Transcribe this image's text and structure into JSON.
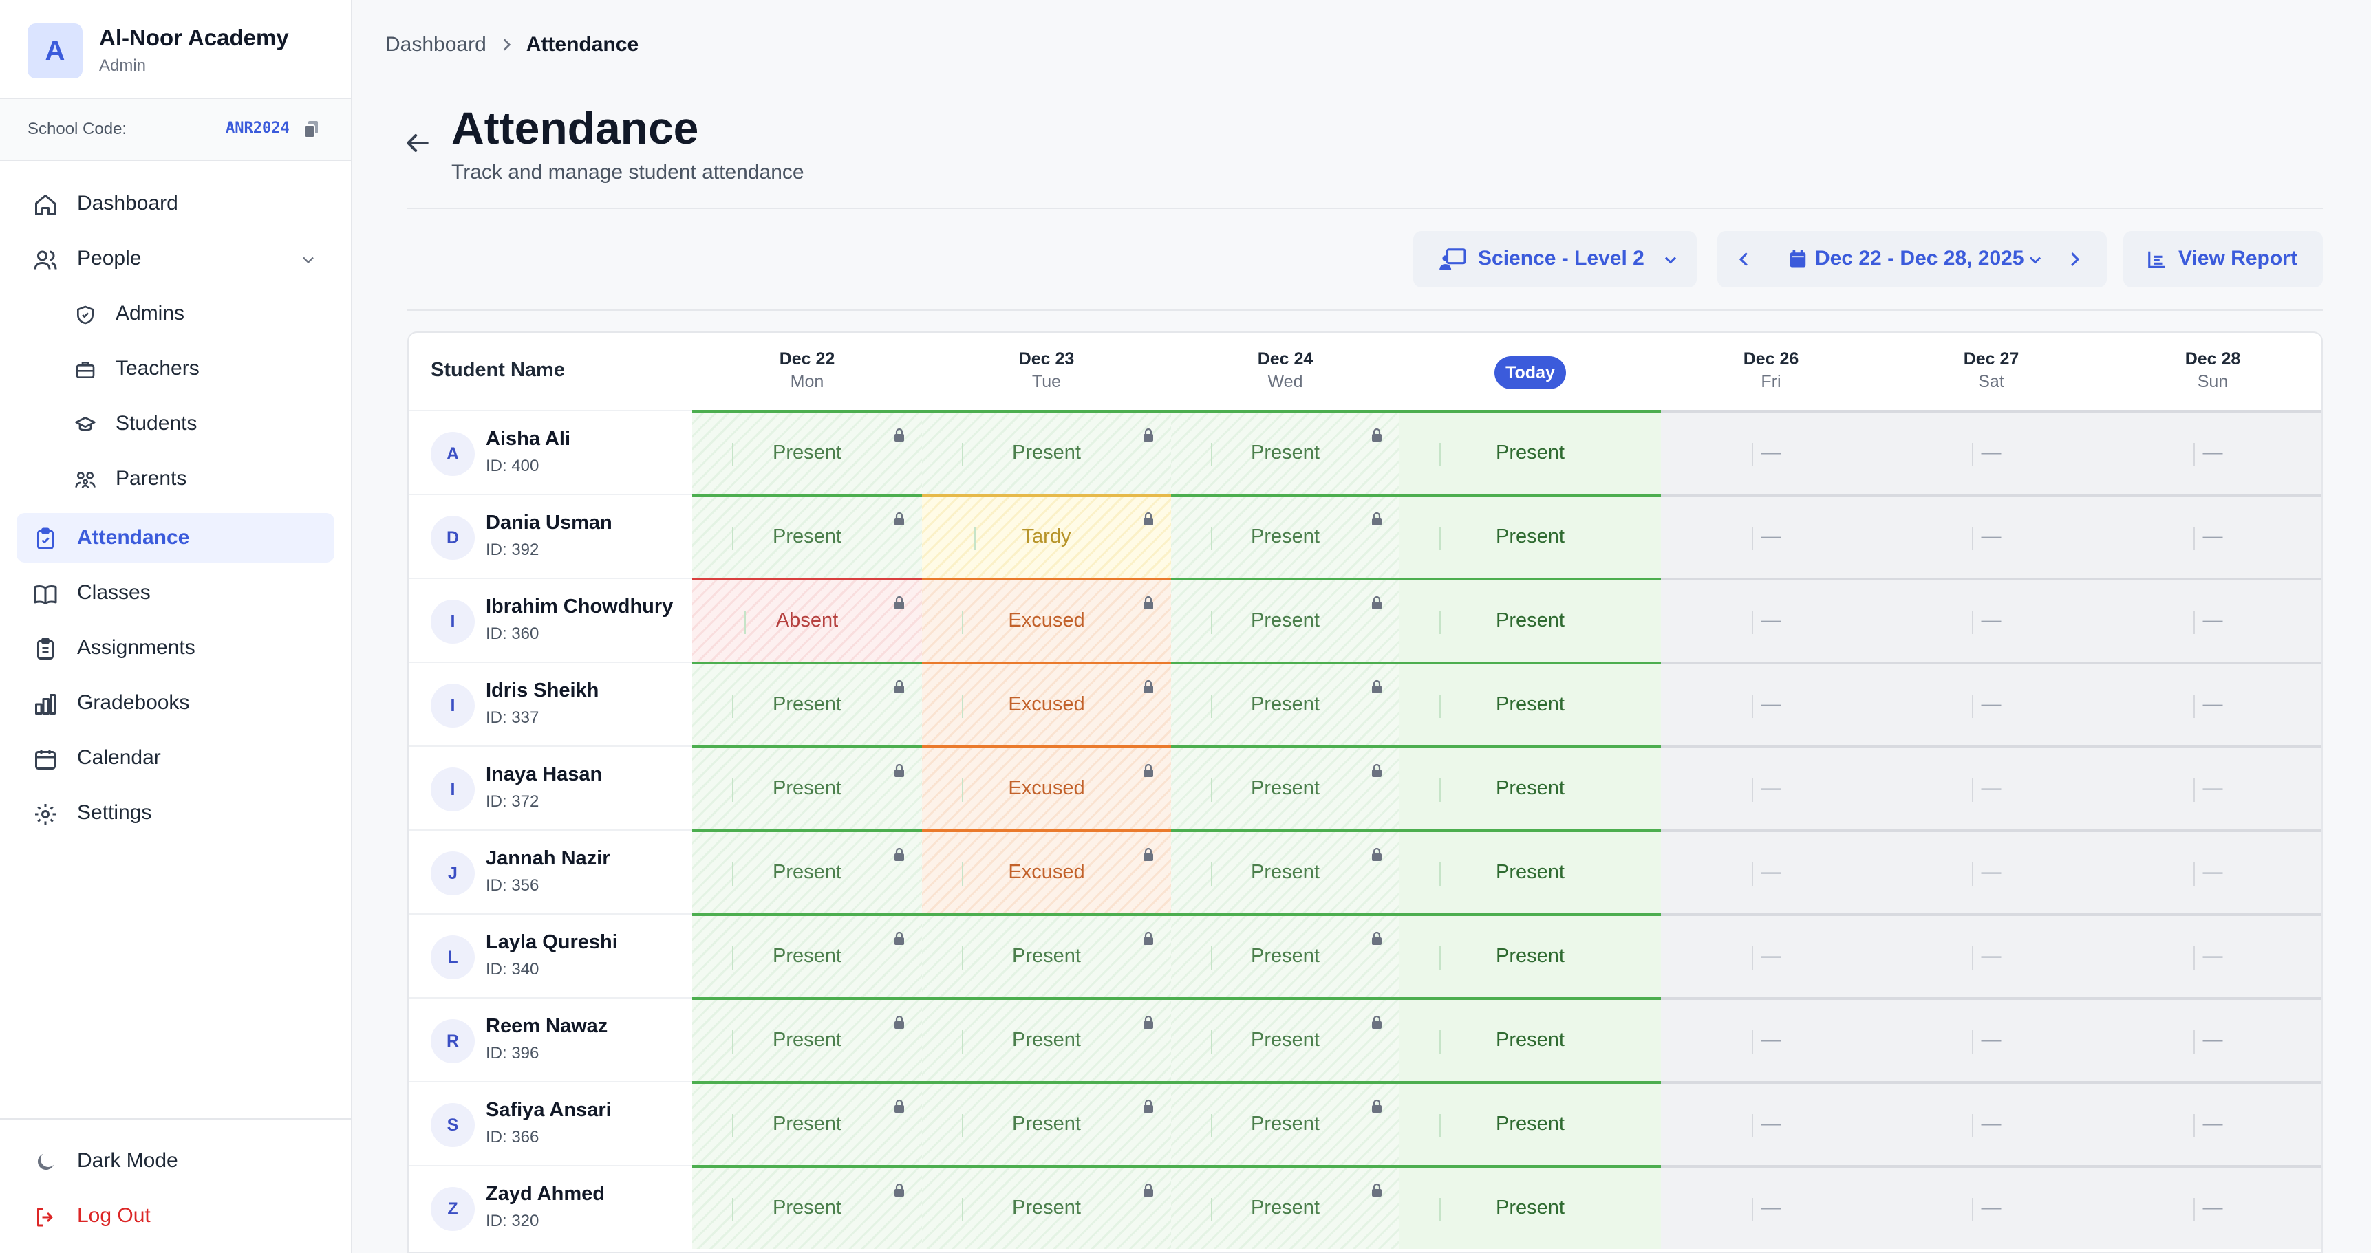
{
  "sidebar": {
    "brand": {
      "initial": "A",
      "name": "Al-Noor Academy",
      "role": "Admin"
    },
    "school_code": {
      "label": "School Code:",
      "value": "ANR2024"
    },
    "nav": [
      {
        "label": "Dashboard",
        "icon": "home-icon"
      },
      {
        "label": "People",
        "icon": "users-icon"
      },
      {
        "label": "Admins",
        "icon": "shield-icon"
      },
      {
        "label": "Teachers",
        "icon": "briefcase-icon"
      },
      {
        "label": "Students",
        "icon": "graduation-cap-icon"
      },
      {
        "label": "Parents",
        "icon": "family-icon"
      },
      {
        "label": "Attendance",
        "icon": "clipboard-check-icon",
        "active": true
      },
      {
        "label": "Classes",
        "icon": "book-icon"
      },
      {
        "label": "Assignments",
        "icon": "clipboard-icon"
      },
      {
        "label": "Gradebooks",
        "icon": "bar-chart-icon"
      },
      {
        "label": "Calendar",
        "icon": "calendar-icon"
      },
      {
        "label": "Settings",
        "icon": "gear-icon"
      }
    ],
    "dark_mode": "Dark Mode",
    "logout": "Log Out"
  },
  "breadcrumb": {
    "parent": "Dashboard",
    "current": "Attendance"
  },
  "header": {
    "title": "Attendance",
    "subtitle": "Track and manage student attendance"
  },
  "toolbar": {
    "class_select": "Science - Level 2",
    "week_range": "Dec 22 - Dec 28, 2025",
    "view_report": "View Report"
  },
  "table": {
    "name_header": "Student Name",
    "days": [
      {
        "date": "Dec 22",
        "dow": "Mon"
      },
      {
        "date": "Dec 23",
        "dow": "Tue"
      },
      {
        "date": "Dec 24",
        "dow": "Wed"
      },
      {
        "date": "Today",
        "dow": "",
        "today": true
      },
      {
        "date": "Dec 26",
        "dow": "Fri"
      },
      {
        "date": "Dec 27",
        "dow": "Sat"
      },
      {
        "date": "Dec 28",
        "dow": "Sun"
      }
    ],
    "empty_mark": "—",
    "students": [
      {
        "initial": "A",
        "name": "Aisha Ali",
        "id": "ID: 400",
        "marks": [
          "Present",
          "Present",
          "Present",
          "Present"
        ]
      },
      {
        "initial": "D",
        "name": "Dania Usman",
        "id": "ID: 392",
        "marks": [
          "Present",
          "Tardy",
          "Present",
          "Present"
        ]
      },
      {
        "initial": "I",
        "name": "Ibrahim Chowdhury",
        "id": "ID: 360",
        "marks": [
          "Absent",
          "Excused",
          "Present",
          "Present"
        ]
      },
      {
        "initial": "I",
        "name": "Idris Sheikh",
        "id": "ID: 337",
        "marks": [
          "Present",
          "Excused",
          "Present",
          "Present"
        ]
      },
      {
        "initial": "I",
        "name": "Inaya Hasan",
        "id": "ID: 372",
        "marks": [
          "Present",
          "Excused",
          "Present",
          "Present"
        ]
      },
      {
        "initial": "J",
        "name": "Jannah Nazir",
        "id": "ID: 356",
        "marks": [
          "Present",
          "Excused",
          "Present",
          "Present"
        ]
      },
      {
        "initial": "L",
        "name": "Layla Qureshi",
        "id": "ID: 340",
        "marks": [
          "Present",
          "Present",
          "Present",
          "Present"
        ]
      },
      {
        "initial": "R",
        "name": "Reem Nawaz",
        "id": "ID: 396",
        "marks": [
          "Present",
          "Present",
          "Present",
          "Present"
        ]
      },
      {
        "initial": "S",
        "name": "Safiya Ansari",
        "id": "ID: 366",
        "marks": [
          "Present",
          "Present",
          "Present",
          "Present"
        ]
      },
      {
        "initial": "Z",
        "name": "Zayd Ahmed",
        "id": "ID: 320",
        "marks": [
          "Present",
          "Present",
          "Present",
          "Present"
        ]
      }
    ]
  },
  "colors": {
    "accent": "#3b5bdb",
    "present": "#4cae4f",
    "tardy": "#e6b94a",
    "excused": "#ea7a2c",
    "absent": "#d93f3f"
  }
}
